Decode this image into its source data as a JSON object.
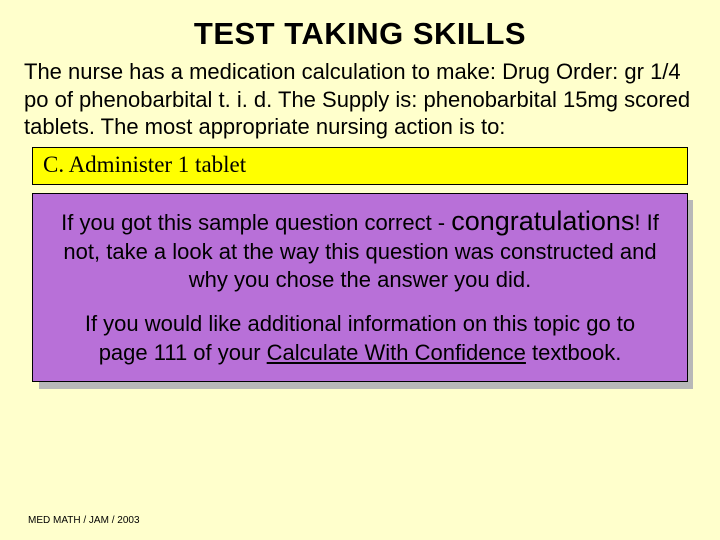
{
  "title": "TEST TAKING SKILLS",
  "question_text": "The nurse has a medication calculation to make: Drug Order: gr 1/4 po of phenobarbital t. i. d.  The Supply is: phenobarbital 15mg scored tablets. The most appropriate nursing action is to:",
  "answer_label": "C. Administer 1 tablet",
  "feedback": {
    "line1_prefix": "If you got this sample question correct -",
    "congrats_word": "congratulations",
    "line1_suffix": "! If not, take a look at the way this question was constructed and why you chose the answer you did.",
    "para2_prefix": "If you would like additional information on this topic go to page 111 of your ",
    "book_title": "Calculate With Confidence",
    "para2_suffix": " textbook."
  },
  "footer": "MED MATH / JAM / 2003",
  "colors": {
    "page_bg": "#ffffcc",
    "answer_bg": "#ffff00",
    "feedback_bg": "#b870d8",
    "shadow": "#b8b8b8",
    "border": "#000000",
    "text": "#000000"
  }
}
